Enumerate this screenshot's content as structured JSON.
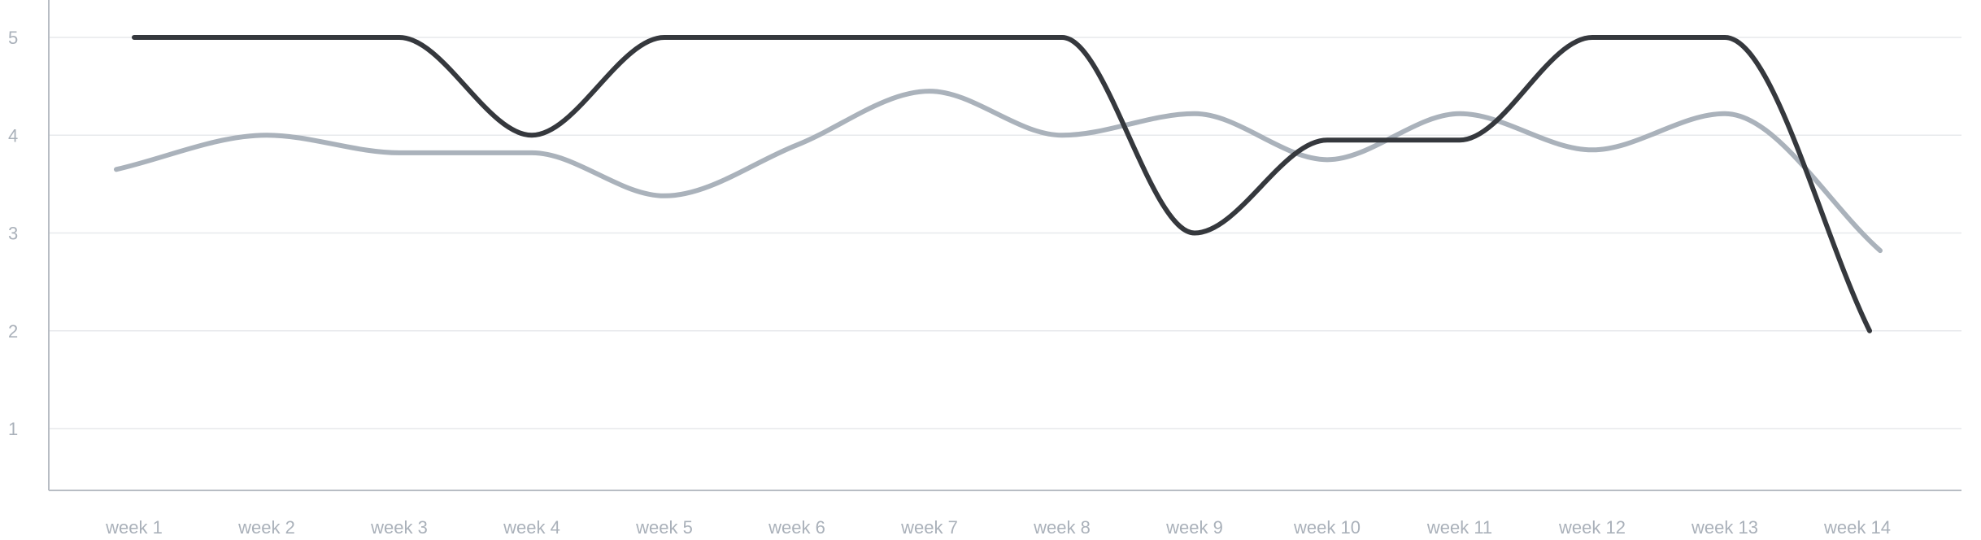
{
  "chart_data": {
    "type": "line",
    "title": "",
    "xlabel": "",
    "ylabel": "",
    "categories": [
      "week 1",
      "week 2",
      "week 3",
      "week 4",
      "week 5",
      "week 6",
      "week 7",
      "week 8",
      "week 9",
      "week 10",
      "week 11",
      "week 12",
      "week 13",
      "week 14"
    ],
    "y_ticks": [
      "1",
      "2",
      "3",
      "4",
      "5"
    ],
    "ylim": [
      0.35,
      5.4
    ],
    "grid": true,
    "legend": "none",
    "smooth": true,
    "series": [
      {
        "color": "#aab2bb",
        "values": [
          3.65,
          4.0,
          3.82,
          3.82,
          3.38,
          3.9,
          4.45,
          4.0,
          4.22,
          3.75,
          4.22,
          3.85,
          4.22,
          2.82
        ]
      },
      {
        "color": "#35383d",
        "values": [
          5.0,
          5.0,
          5.0,
          4.0,
          5.0,
          5.0,
          5.0,
          5.0,
          3.0,
          3.95,
          3.95,
          5.0,
          5.0,
          2.0
        ]
      }
    ]
  }
}
